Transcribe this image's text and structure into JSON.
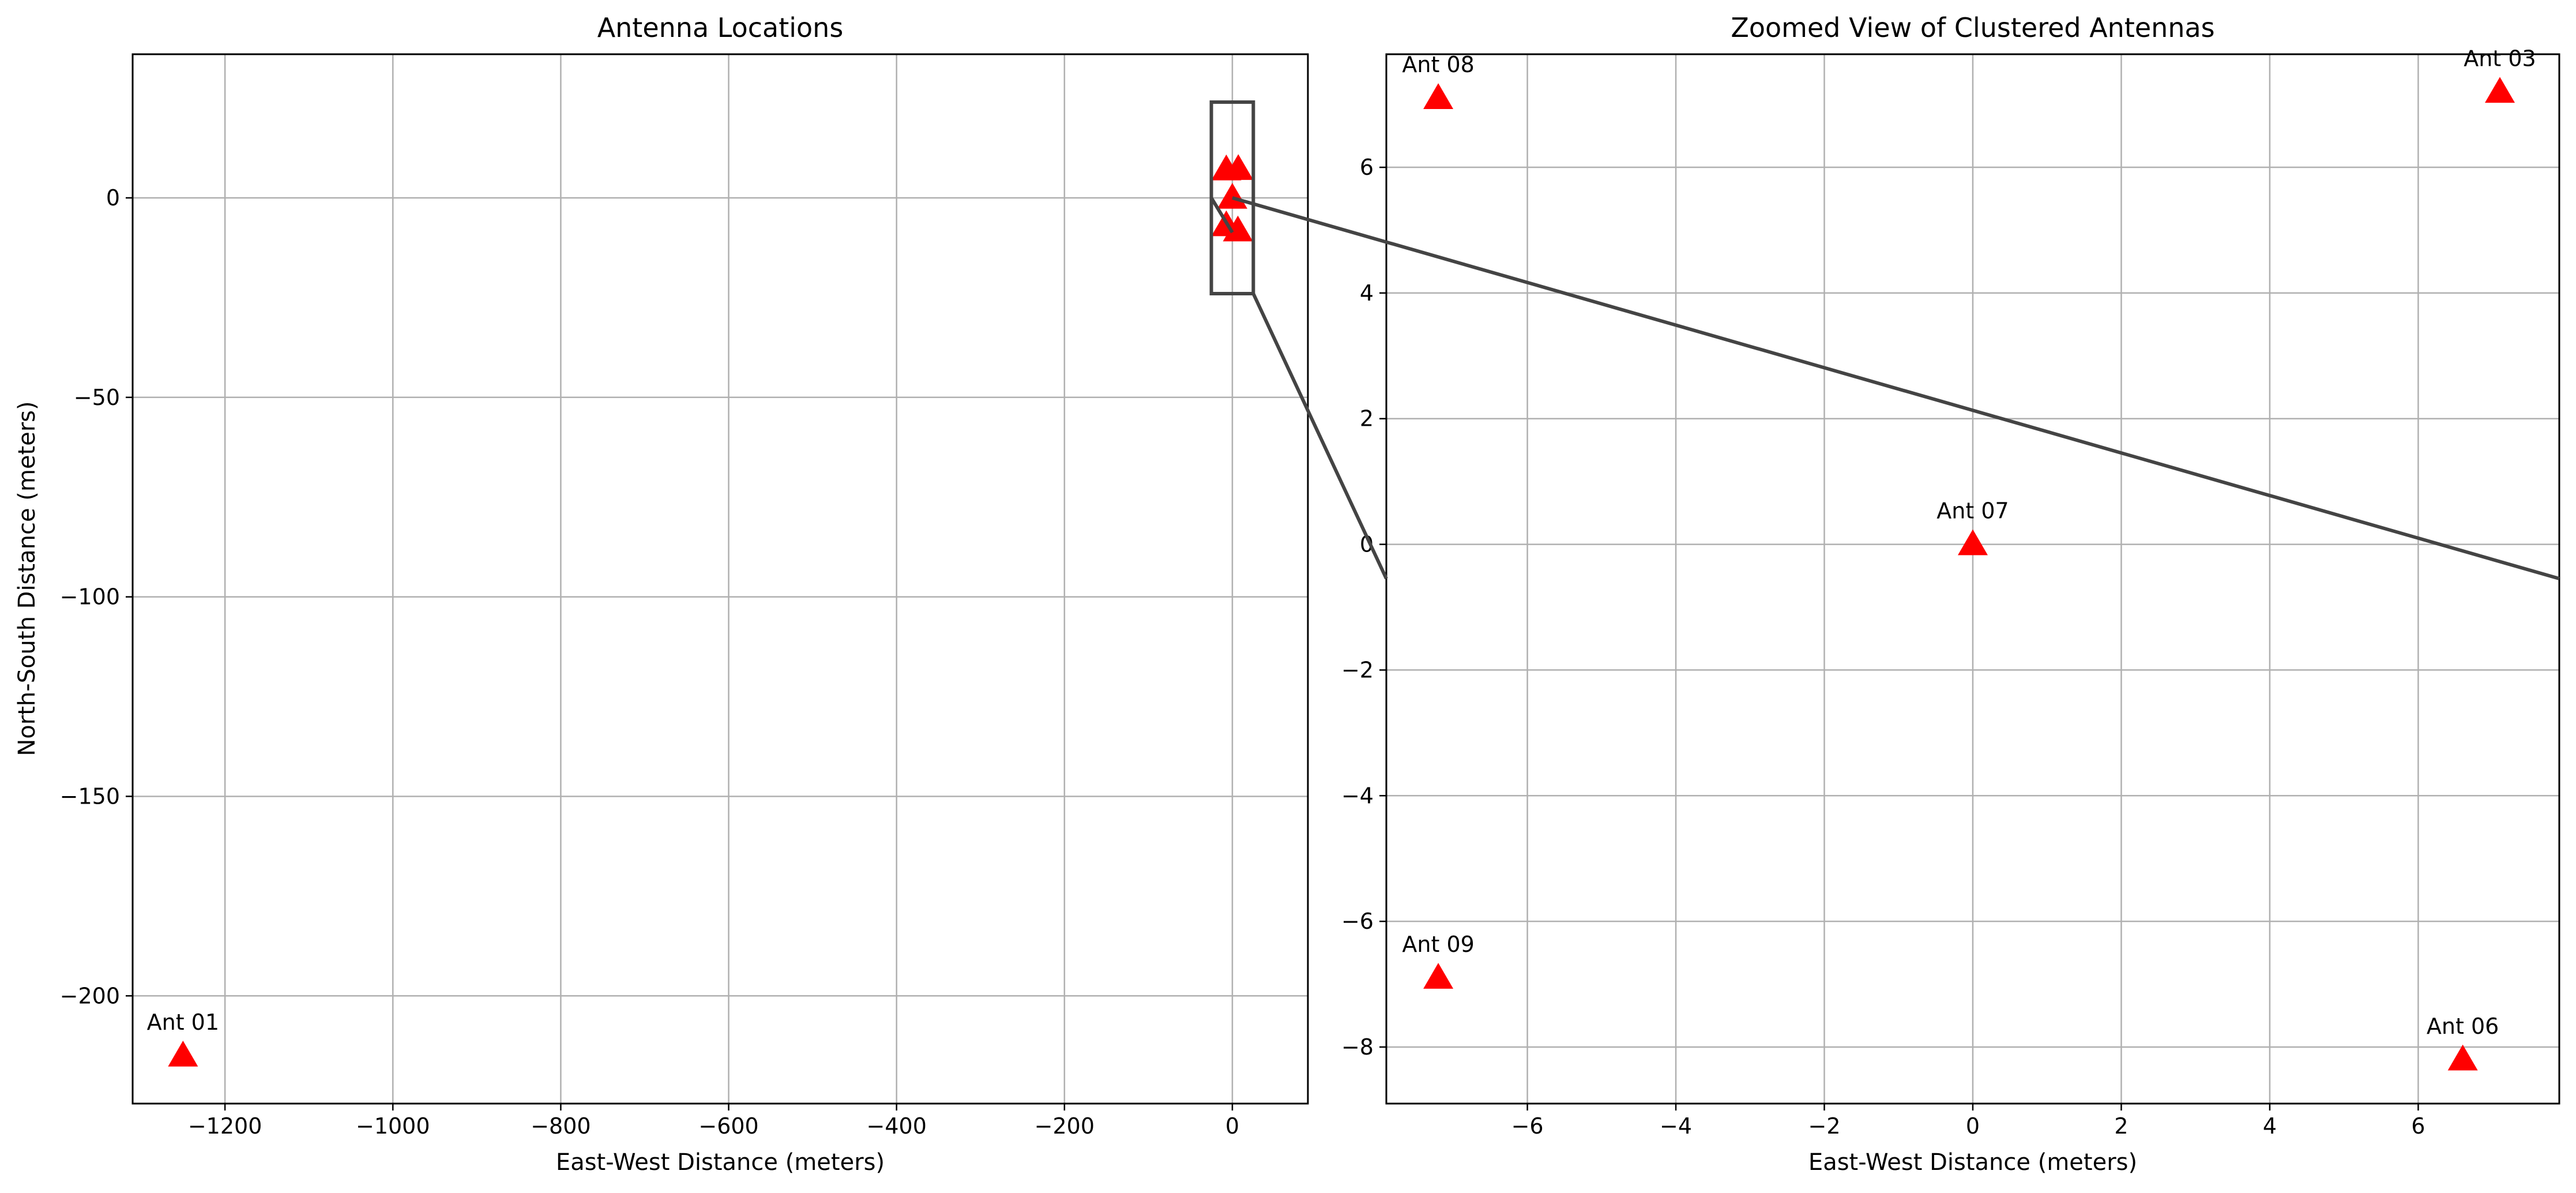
{
  "chart_data": [
    {
      "type": "scatter",
      "title": "Antenna Locations",
      "xlabel": "East-West Distance (meters)",
      "ylabel": "North-South Distance (meters)",
      "xlim": [
        -1310,
        90
      ],
      "ylim": [
        -227,
        36
      ],
      "grid": true,
      "xticks": [
        -1200,
        -1000,
        -800,
        -600,
        -400,
        -200,
        0
      ],
      "yticks": [
        -200,
        -150,
        -100,
        -50,
        0
      ],
      "xtick_labels": [
        "−1200",
        "−1000",
        "−800",
        "−600",
        "−400",
        "−200",
        "0"
      ],
      "ytick_labels": [
        "−200",
        "−150",
        "−100",
        "−50",
        "0"
      ],
      "marker": "triangle",
      "marker_color": "#ff0000",
      "series": [
        {
          "points": [
            {
              "x": -1250,
              "y": -215,
              "label": "Ant 01"
            },
            {
              "x": 7.1,
              "y": 7.2,
              "label": ""
            },
            {
              "x": 6.6,
              "y": -8.2,
              "label": ""
            },
            {
              "x": 0,
              "y": 0,
              "label": ""
            },
            {
              "x": -7.2,
              "y": 7.1,
              "label": ""
            },
            {
              "x": -7.2,
              "y": -6.9,
              "label": ""
            }
          ]
        }
      ],
      "inset_box": {
        "x": [
          -25,
          25
        ],
        "y": [
          -24,
          24
        ]
      }
    },
    {
      "type": "scatter",
      "title": "Zoomed View of Clustered Antennas",
      "xlabel": "East-West Distance (meters)",
      "ylabel": "",
      "xlim": [
        -7.9,
        7.9
      ],
      "ylim": [
        -8.9,
        7.8
      ],
      "grid": true,
      "xticks": [
        -6,
        -4,
        -2,
        0,
        2,
        4,
        6
      ],
      "yticks": [
        -8,
        -6,
        -4,
        -2,
        0,
        2,
        4,
        6
      ],
      "xtick_labels": [
        "−6",
        "−4",
        "−2",
        "0",
        "2",
        "4",
        "6"
      ],
      "ytick_labels": [
        "−8",
        "−6",
        "−4",
        "−2",
        "0",
        "2",
        "4",
        "6"
      ],
      "marker": "triangle",
      "marker_color": "#ff0000",
      "series": [
        {
          "points": [
            {
              "x": -7.2,
              "y": 7.1,
              "label": "Ant 08"
            },
            {
              "x": 7.1,
              "y": 7.2,
              "label": "Ant 03"
            },
            {
              "x": 0,
              "y": 0,
              "label": "Ant 07"
            },
            {
              "x": -7.2,
              "y": -6.9,
              "label": "Ant 09"
            },
            {
              "x": 6.6,
              "y": -8.2,
              "label": "Ant 06"
            }
          ]
        }
      ]
    }
  ]
}
